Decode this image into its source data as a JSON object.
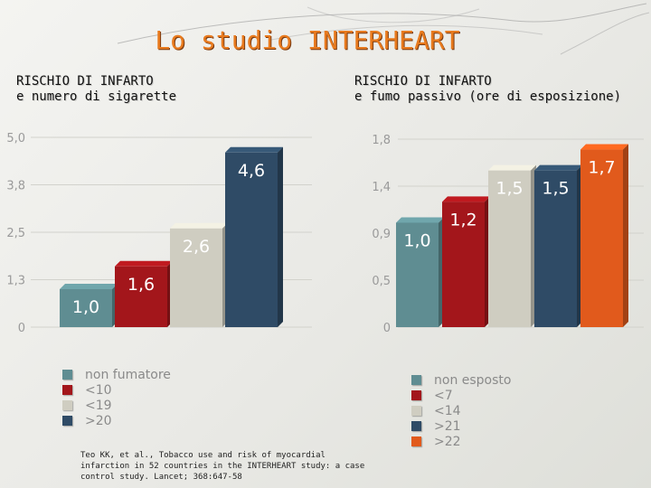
{
  "title": "Lo studio INTERHEART",
  "citation": "Teo KK, et al., Tobacco use and risk of myocardial infarction in 52 countries in the INTERHEART study: a case control study. Lancet; 368:647-58",
  "chart_data": [
    {
      "type": "bar",
      "title_lines": [
        "RISCHIO DI INFARTO",
        "e numero di sigarette"
      ],
      "categories": [
        "non fumatore",
        "<10",
        "<19",
        ">20"
      ],
      "values": [
        1.0,
        1.6,
        2.6,
        4.6
      ],
      "value_labels": [
        "1,0",
        "1,6",
        "2,6",
        "4,6"
      ],
      "colors": [
        "#5f8d92",
        "#a3161b",
        "#cfcdc1",
        "#2f4b66"
      ],
      "yticks": [
        "0",
        "1,3",
        "2,5",
        "3,8",
        "5,0"
      ],
      "ylim": [
        0,
        5.0
      ],
      "grid": true
    },
    {
      "type": "bar",
      "title_lines": [
        "RISCHIO DI INFARTO",
        "e fumo passivo (ore di esposizione)"
      ],
      "categories": [
        "non esposto",
        "<7",
        "<14",
        ">21",
        ">22"
      ],
      "values": [
        1.0,
        1.2,
        1.5,
        1.5,
        1.7
      ],
      "value_labels": [
        "1,0",
        "1,2",
        "1,5",
        "1,5",
        "1,7"
      ],
      "colors": [
        "#5f8d92",
        "#a3161b",
        "#cfcdc1",
        "#2f4b66",
        "#e15a1c"
      ],
      "yticks": [
        "0",
        "0,5",
        "0,9",
        "1,4",
        "1,8"
      ],
      "ylim": [
        0,
        1.8
      ],
      "grid": true
    }
  ]
}
